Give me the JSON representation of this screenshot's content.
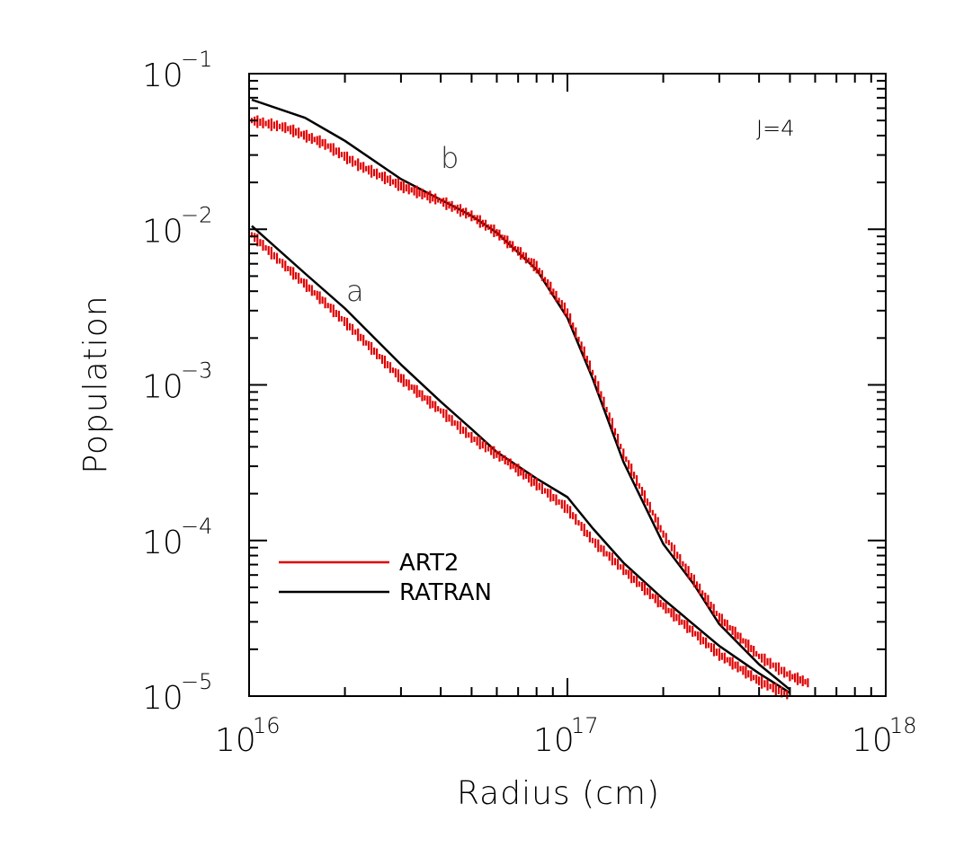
{
  "chart_data": {
    "type": "line",
    "xlabel": "Radius (cm)",
    "ylabel": "Population",
    "x_scale": "log",
    "y_scale": "log",
    "xlim": [
      1e+16,
      1e+18
    ],
    "ylim": [
      1e-05,
      0.1
    ],
    "x_ticks": [
      {
        "base": "10",
        "exp": "16",
        "value": 1e+16
      },
      {
        "base": "10",
        "exp": "17",
        "value": 1e+17
      },
      {
        "base": "10",
        "exp": "18",
        "value": 1e+18
      }
    ],
    "y_ticks": [
      {
        "base": "10",
        "exp": "−5",
        "value": 1e-05
      },
      {
        "base": "10",
        "exp": "−4",
        "value": 0.0001
      },
      {
        "base": "10",
        "exp": "−3",
        "value": 0.001
      },
      {
        "base": "10",
        "exp": "−2",
        "value": 0.01
      },
      {
        "base": "10",
        "exp": "−1",
        "value": 0.1
      }
    ],
    "annotations": [
      {
        "text": "J=4",
        "x": 3.3e+17,
        "y": 0.0625
      },
      {
        "text": "b",
        "x": 4e+16,
        "y": 0.031
      },
      {
        "text": "a",
        "x": 2.1e+16,
        "y": 0.0044
      }
    ],
    "legend": {
      "position": "bottom-left",
      "entries": [
        {
          "label": "ART2",
          "color": "#e00000"
        },
        {
          "label": "RATRAN",
          "color": "#000000"
        }
      ]
    },
    "colors": {
      "ART2": "#e00000",
      "RATRAN": "#000000"
    },
    "series": [
      {
        "name": "RATRAN",
        "curve": "b",
        "color": "#000000",
        "x": [
          1.02e+16,
          1.5e+16,
          2e+16,
          3e+16,
          4e+16,
          5e+16,
          6e+16,
          8e+16,
          1e+17,
          1.2e+17,
          1.5e+17,
          2e+17,
          2.5e+17,
          3e+17,
          4e+17,
          5e+17
        ],
        "y": [
          0.068,
          0.052,
          0.037,
          0.021,
          0.0155,
          0.0122,
          0.0095,
          0.0055,
          0.0027,
          0.0011,
          0.00032,
          9.5e-05,
          5.2e-05,
          2.9e-05,
          1.6e-05,
          1.1e-05
        ]
      },
      {
        "name": "RATRAN",
        "curve": "a",
        "color": "#000000",
        "x": [
          1.02e+16,
          1.5e+16,
          2e+16,
          3e+16,
          4e+16,
          5e+16,
          6e+16,
          8e+16,
          1e+17,
          1.2e+17,
          1.5e+17,
          2e+17,
          3e+17,
          4e+17,
          5e+17
        ],
        "y": [
          0.0105,
          0.0052,
          0.0031,
          0.00135,
          0.00078,
          0.00052,
          0.00037,
          0.00025,
          0.00019,
          0.00012,
          7.2e-05,
          4.2e-05,
          2.1e-05,
          1.4e-05,
          1.05e-05
        ]
      },
      {
        "name": "ART2",
        "curve": "b",
        "color": "#e00000",
        "x": [
          1.02e+16,
          1.3e+16,
          1.7e+16,
          2.2e+16,
          3e+16,
          4e+16,
          5e+16,
          6e+16,
          8e+16,
          1e+17,
          1.2e+17,
          1.5e+17,
          2e+17,
          2.5e+17,
          3e+17,
          4e+17,
          5e+17,
          5.8e+17
        ],
        "y": [
          0.05,
          0.045,
          0.036,
          0.026,
          0.019,
          0.0152,
          0.0122,
          0.0095,
          0.0057,
          0.0029,
          0.0012,
          0.00036,
          0.00011,
          5.5e-05,
          3.2e-05,
          1.8e-05,
          1.35e-05,
          1.2e-05
        ]
      },
      {
        "name": "ART2",
        "curve": "a",
        "color": "#e00000",
        "x": [
          1.02e+16,
          1.3e+16,
          1.7e+16,
          2.2e+16,
          3e+16,
          4e+16,
          5e+16,
          6.5e+16,
          8e+16,
          1e+17,
          1.2e+17,
          1.5e+17,
          2e+17,
          3e+17,
          4e+17,
          5e+17
        ],
        "y": [
          0.0092,
          0.0058,
          0.0035,
          0.0021,
          0.0011,
          0.00068,
          0.00046,
          0.00032,
          0.00023,
          0.00016,
          0.0001,
          6.5e-05,
          3.8e-05,
          1.85e-05,
          1.25e-05,
          1e-05
        ]
      }
    ]
  }
}
